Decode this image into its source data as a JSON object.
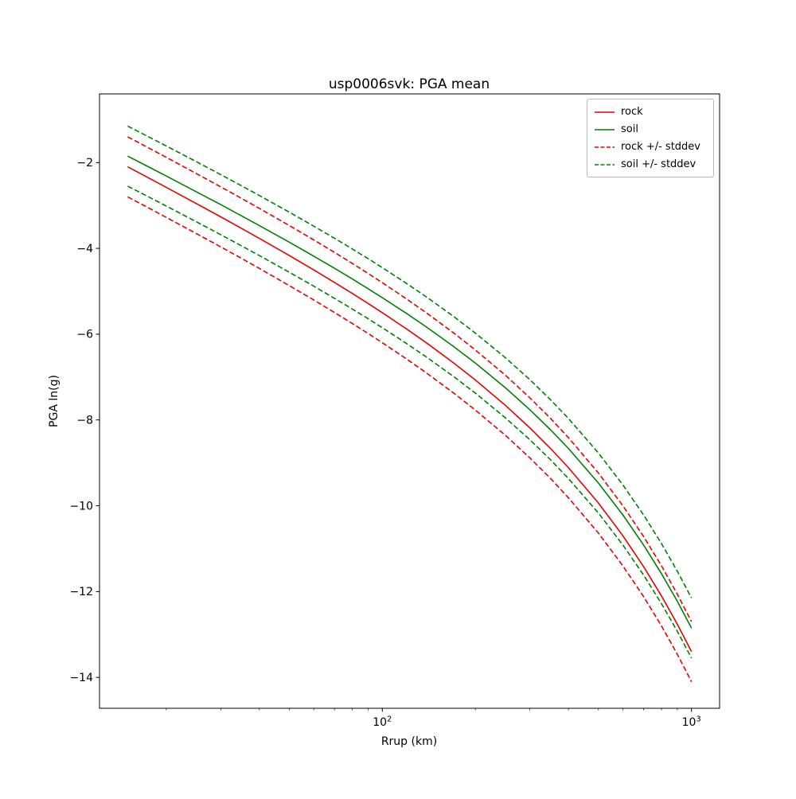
{
  "chart": {
    "title": "usp0006svk: PGA mean",
    "xlabel": "Rrup (km)",
    "ylabel": "PGA ln(g)",
    "xlim_log10": [
      1.085,
      3.091
    ],
    "x_ticks": [
      {
        "value": 100,
        "base": "10",
        "exp": "2"
      },
      {
        "value": 1000,
        "base": "10",
        "exp": "3"
      }
    ],
    "x_minor_ticks": [
      20,
      30,
      40,
      50,
      60,
      70,
      80,
      90,
      200,
      300,
      400,
      500,
      600,
      700,
      800,
      900
    ],
    "y_ticks": [
      {
        "value": -2,
        "label": "−2"
      },
      {
        "value": -4,
        "label": "−4"
      },
      {
        "value": -6,
        "label": "−6"
      },
      {
        "value": -8,
        "label": "−8"
      },
      {
        "value": -10,
        "label": "−10"
      },
      {
        "value": -12,
        "label": "−12"
      },
      {
        "value": -14,
        "label": "−14"
      }
    ],
    "legend": [
      {
        "label": "rock",
        "series": 0,
        "dashed": false
      },
      {
        "label": "soil",
        "series": 1,
        "dashed": false
      },
      {
        "label": "rock +/- stddev",
        "series": 0,
        "dashed": true
      },
      {
        "label": "soil +/- stddev",
        "series": 1,
        "dashed": true
      }
    ]
  },
  "chart_data": {
    "type": "line",
    "title": "usp0006svk: PGA mean",
    "xlabel": "Rrup (km)",
    "ylabel": "PGA ln(g)",
    "x_scale": "log",
    "grid": false,
    "legend_position": "upper right",
    "xlim": [
      12.2,
      1233
    ],
    "ylim": [
      -14.72,
      -0.4
    ],
    "x": [
      15,
      17,
      20,
      25,
      30,
      35,
      40,
      50,
      60,
      70,
      80,
      90,
      100,
      120,
      140,
      170,
      200,
      250,
      300,
      350,
      400,
      500,
      600,
      700,
      800,
      900,
      1000
    ],
    "series": [
      {
        "name": "rock",
        "color": "#e60000",
        "stddev": 0.7,
        "values": [
          -2.1,
          -2.307,
          -2.578,
          -2.954,
          -3.266,
          -3.533,
          -3.768,
          -4.168,
          -4.503,
          -4.794,
          -5.053,
          -5.286,
          -5.5,
          -5.883,
          -6.221,
          -6.67,
          -7.069,
          -7.658,
          -8.183,
          -8.663,
          -9.111,
          -9.937,
          -10.699,
          -11.416,
          -12.1,
          -12.76,
          -13.4
        ]
      },
      {
        "name": "soil",
        "color": "#008000",
        "stddev": 0.7,
        "values": [
          -1.85,
          -2.051,
          -2.314,
          -2.679,
          -2.981,
          -3.241,
          -3.468,
          -3.856,
          -4.182,
          -4.465,
          -4.715,
          -4.942,
          -5.15,
          -5.522,
          -5.851,
          -6.287,
          -6.675,
          -7.249,
          -7.76,
          -8.228,
          -8.664,
          -9.47,
          -10.213,
          -10.913,
          -11.581,
          -12.225,
          -12.85
        ]
      }
    ]
  }
}
